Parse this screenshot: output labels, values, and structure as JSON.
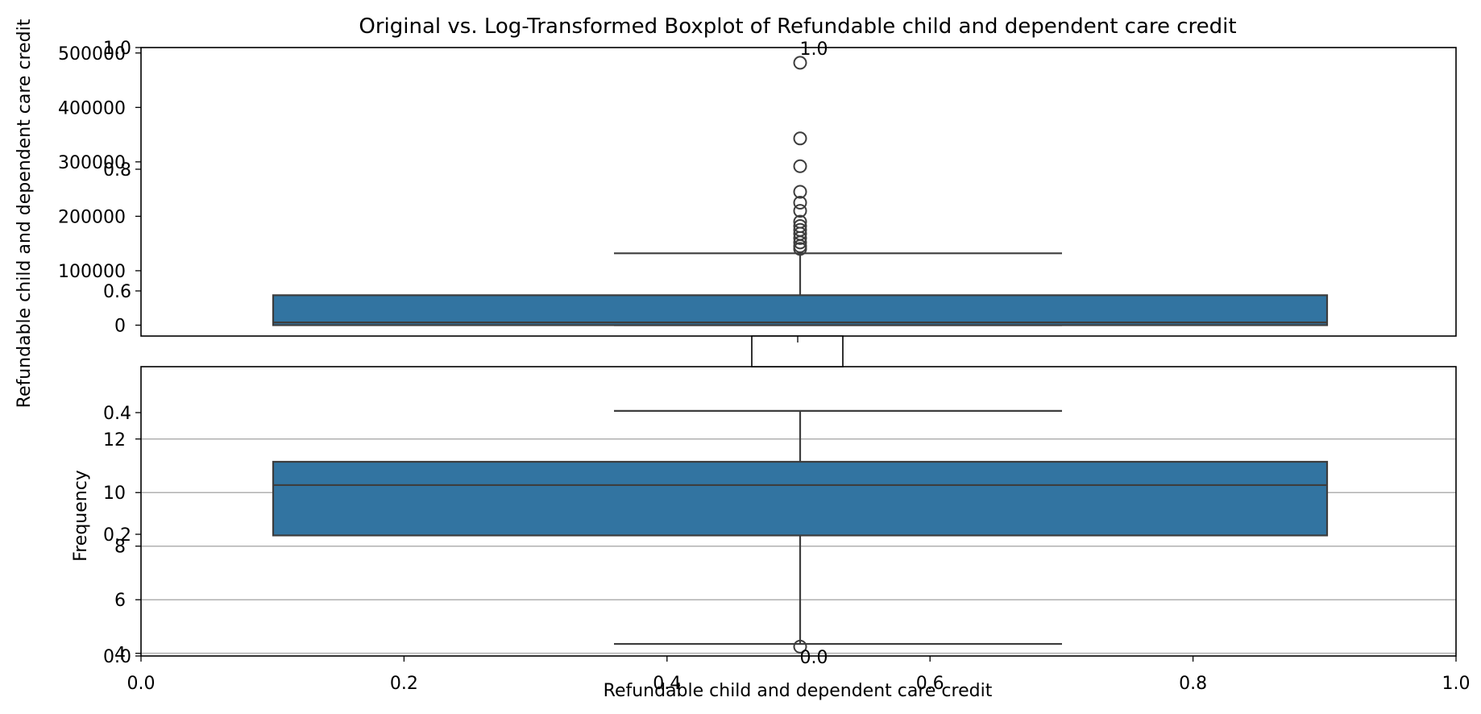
{
  "chart_data": {
    "type": "box",
    "title": "Original vs. Log-Transformed Boxplot of Refundable child and dependent care credit",
    "background_axes": {
      "xlabel": "",
      "ylabel": "",
      "xlim": [
        0.0,
        1.0
      ],
      "ylim": [
        0.0,
        1.0
      ],
      "x_ticks": [
        "0.0",
        "0.2",
        "0.4",
        "0.6",
        "0.8",
        "1.0"
      ],
      "y_ticks": [
        "0.0",
        "0.2",
        "0.4",
        "0.6",
        "0.8",
        "1.0"
      ],
      "grid": false
    },
    "panels": [
      {
        "id": "original",
        "ylabel": "Refundable child and dependent care credit",
        "ylim": [
          -20000,
          510000
        ],
        "y_ticks": [
          0,
          100000,
          200000,
          300000,
          400000,
          500000
        ],
        "y_tick_labels": [
          "0",
          "100000",
          "200000",
          "300000",
          "400000",
          "500000"
        ],
        "x_ticks": [
          "0.0",
          "0.2",
          "0.4",
          "0.6",
          "0.8",
          "1.0"
        ],
        "grid": false,
        "box": {
          "whisker_low": 0,
          "q1": 0,
          "median": 5000,
          "q3": 55000,
          "whisker_high": 132000,
          "fliers": [
            140000,
            145000,
            152000,
            160000,
            168000,
            175000,
            182000,
            190000,
            210000,
            225000,
            245000,
            292000,
            343000,
            482000
          ]
        },
        "color": "#3274a1"
      },
      {
        "id": "log",
        "ylabel": "Frequency",
        "xlabel": "Refundable child and dependent care credit",
        "ylim": [
          3.9,
          14.7
        ],
        "y_ticks": [
          4,
          6,
          8,
          10,
          12
        ],
        "y_tick_labels": [
          "4",
          "6",
          "8",
          "10",
          "12"
        ],
        "x_ticks": [
          "0.0",
          "0.2",
          "0.4",
          "0.6",
          "0.8",
          "1.0"
        ],
        "grid": true,
        "box": {
          "whisker_low": 4.35,
          "q1": 8.4,
          "median": 10.28,
          "q3": 11.15,
          "whisker_high": 13.05,
          "fliers": [
            4.25
          ]
        },
        "color": "#3274a1"
      }
    ],
    "inset": {
      "xlabel": "",
      "x_ticks": [
        "0.0"
      ],
      "y_ticks": [
        "1.0"
      ]
    }
  }
}
